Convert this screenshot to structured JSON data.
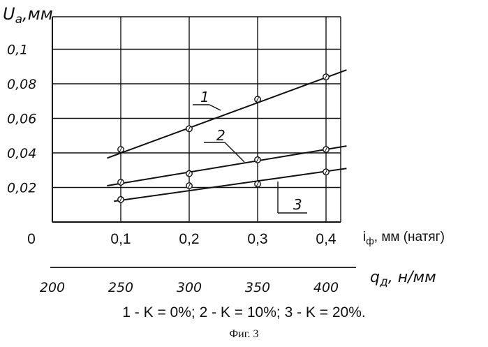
{
  "figure": {
    "caption": "Фиг. 3",
    "legend_text": "1 - K = 0%; 2 - K = 10%; 3 - K = 20%."
  },
  "chart_data": {
    "type": "line",
    "ylabel": "U_a,мм",
    "xlabel": "i_ф, мм (натяг)",
    "x2label": "q_д, н/мм",
    "origin_label": "0",
    "xlim": [
      0.0,
      0.45
    ],
    "ylim": [
      0.0,
      0.12
    ],
    "x": [
      0.1,
      0.2,
      0.3,
      0.4
    ],
    "x_ticks": [
      "0,1",
      "0,2",
      "0,3",
      "0,4"
    ],
    "y_ticks": [
      {
        "value": 0.02,
        "label": "0,02"
      },
      {
        "value": 0.04,
        "label": "0,04"
      },
      {
        "value": 0.06,
        "label": "0,06"
      },
      {
        "value": 0.08,
        "label": "0,08"
      },
      {
        "value": 0.1,
        "label": "0,1"
      }
    ],
    "x2_ticks": [
      {
        "value": 200,
        "label": "200"
      },
      {
        "value": 250,
        "label": "250"
      },
      {
        "value": 300,
        "label": "300"
      },
      {
        "value": 350,
        "label": "350"
      },
      {
        "value": 400,
        "label": "400"
      }
    ],
    "grid": true,
    "series": [
      {
        "name": "1",
        "values": [
          0.042,
          0.054,
          0.071,
          0.084
        ],
        "trend_start": [
          0.08,
          0.037
        ],
        "trend_end": [
          0.43,
          0.088
        ]
      },
      {
        "name": "2",
        "values": [
          0.023,
          0.028,
          0.036,
          0.042
        ],
        "trend_start": [
          0.08,
          0.021
        ],
        "trend_end": [
          0.43,
          0.044
        ]
      },
      {
        "name": "3",
        "values": [
          0.013,
          0.021,
          0.022,
          0.029
        ],
        "trend_start": [
          0.09,
          0.012
        ],
        "trend_end": [
          0.43,
          0.031
        ]
      }
    ]
  }
}
